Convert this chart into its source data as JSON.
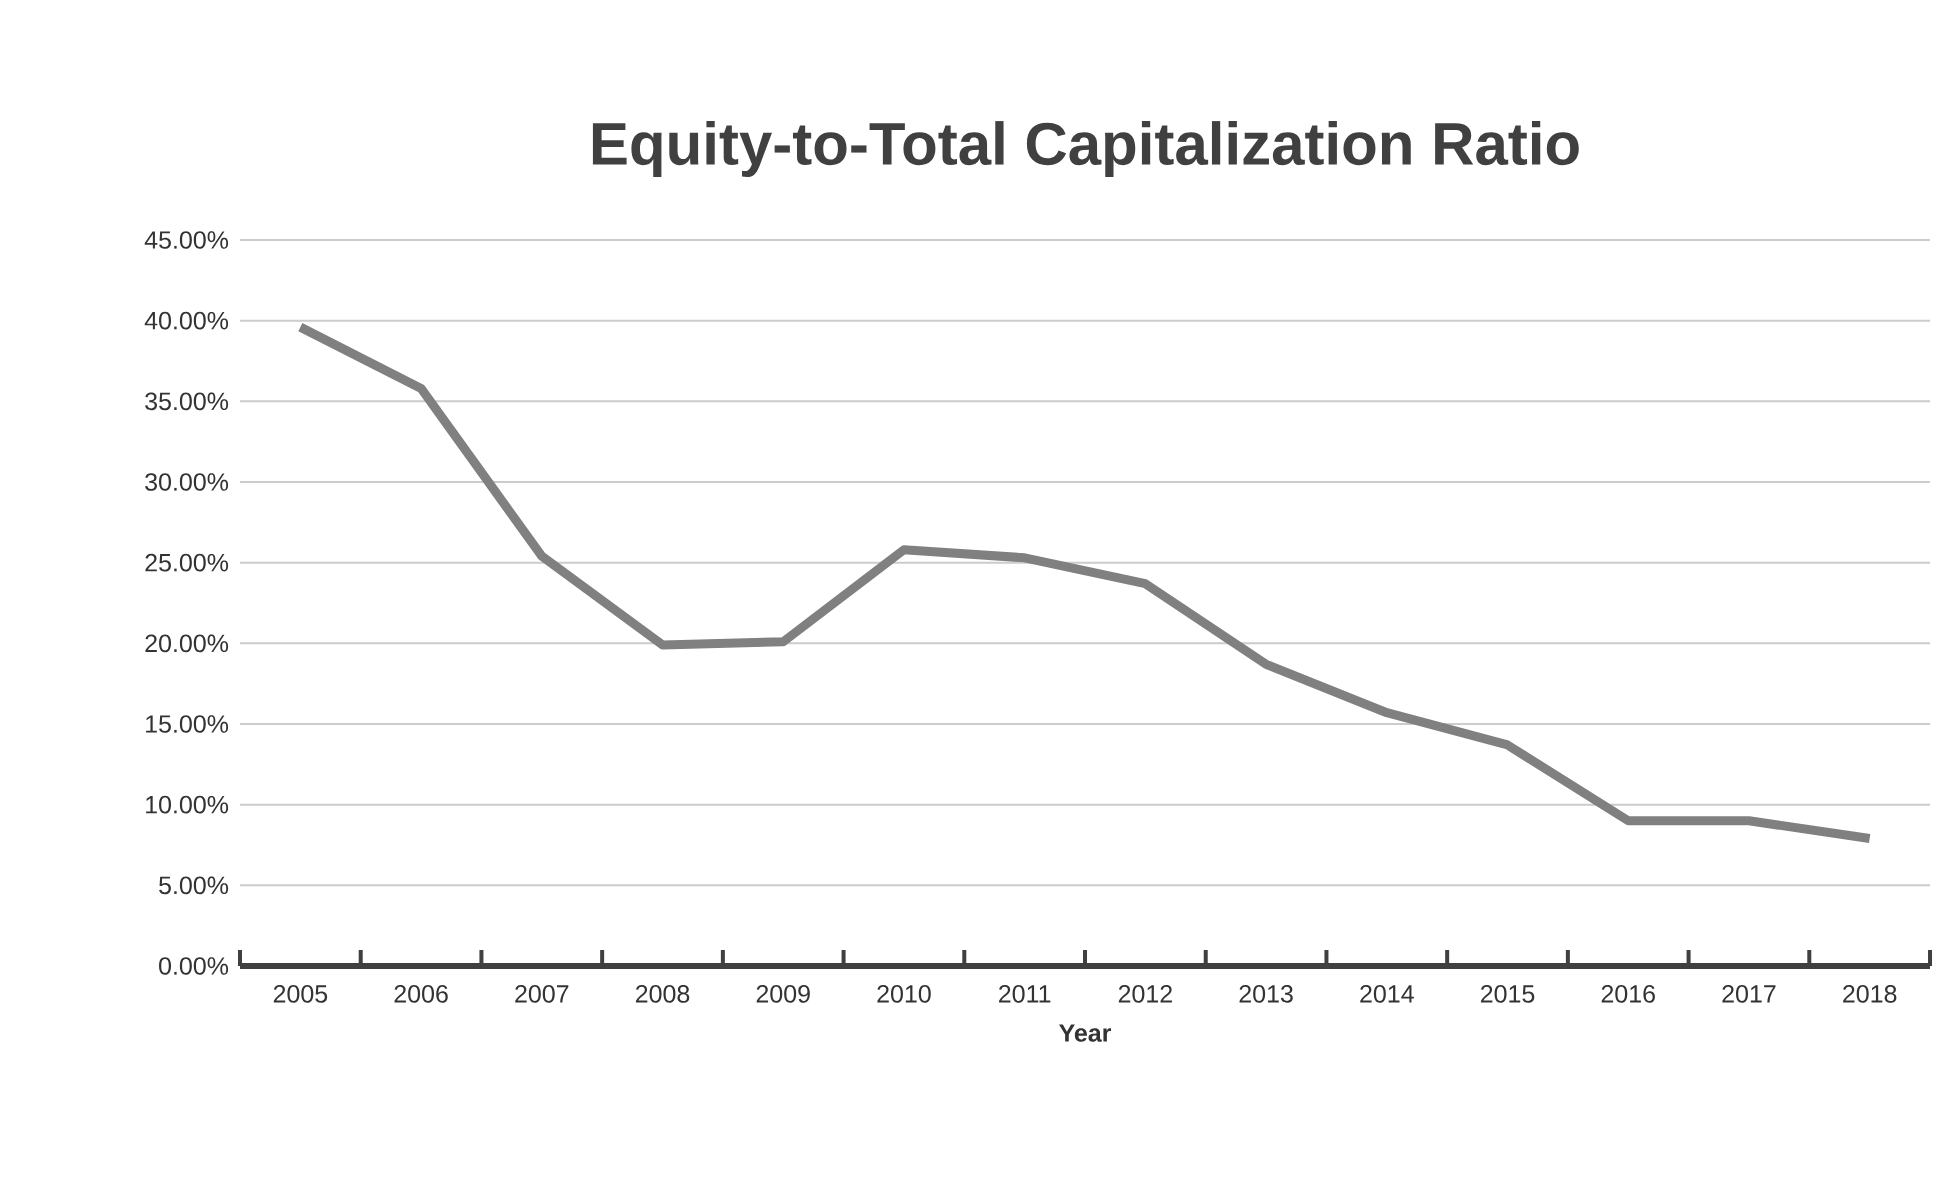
{
  "chart_data": {
    "type": "line",
    "title": "Equity-to-Total Capitalization Ratio",
    "xlabel": "Year",
    "categories": [
      "2005",
      "2006",
      "2007",
      "2008",
      "2009",
      "2010",
      "2011",
      "2012",
      "2013",
      "2014",
      "2015",
      "2016",
      "2017",
      "2018"
    ],
    "series": [
      {
        "color": "#808080",
        "values": [
          39.6,
          35.8,
          25.4,
          19.9,
          20.1,
          25.8,
          25.3,
          23.7,
          18.7,
          15.7,
          13.7,
          9.0,
          9.0,
          7.9
        ]
      }
    ],
    "ylim": [
      0,
      45
    ],
    "yticks": [
      {
        "value": 0,
        "label": "0.00%"
      },
      {
        "value": 5,
        "label": "5.00%"
      },
      {
        "value": 10,
        "label": "10.00%"
      },
      {
        "value": 15,
        "label": "15.00%"
      },
      {
        "value": 20,
        "label": "20.00%"
      },
      {
        "value": 25,
        "label": "25.00%"
      },
      {
        "value": 30,
        "label": "30.00%"
      },
      {
        "value": 35,
        "label": "35.00%"
      },
      {
        "value": 40,
        "label": "40.00%"
      },
      {
        "value": 45,
        "label": "45.00%"
      }
    ],
    "grid": "y",
    "marker": "none",
    "line_style": "solid"
  }
}
